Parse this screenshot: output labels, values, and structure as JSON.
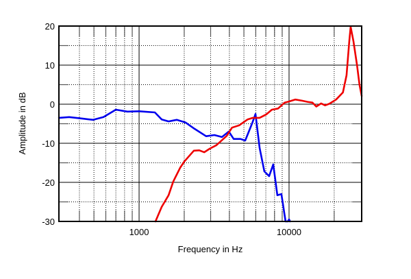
{
  "chart_data": {
    "type": "line",
    "title": "",
    "xlabel": "Frequency  in Hz",
    "ylabel": "Amplitude in dB",
    "xscale": "log",
    "xlim": [
      292,
      30500
    ],
    "ylim": [
      -30,
      20
    ],
    "x_tick_labels": [
      {
        "value": 1000,
        "label": "1000"
      },
      {
        "value": 10000,
        "label": "10000"
      }
    ],
    "y_tick_labels": [
      {
        "value": 20,
        "label": "20"
      },
      {
        "value": 10,
        "label": "10"
      },
      {
        "value": 0,
        "label": "0"
      },
      {
        "value": -10,
        "label": "-10"
      },
      {
        "value": -20,
        "label": "-20"
      },
      {
        "value": -30,
        "label": "-30"
      }
    ],
    "grid": {
      "x_major": [
        1000,
        10000
      ],
      "x_minor": [
        400,
        500,
        600,
        700,
        800,
        900,
        2000,
        3000,
        4000,
        5000,
        6000,
        7000,
        8000,
        9000,
        20000
      ],
      "y_major": [
        -20,
        -10,
        0,
        10
      ],
      "y_minor": [
        -25,
        -15,
        -5,
        5,
        15
      ]
    },
    "legend": null,
    "series": [
      {
        "name": "blue",
        "color": "#0000ee",
        "points": [
          [
            292,
            -3.5
          ],
          [
            342,
            -3.3
          ],
          [
            422,
            -3.7
          ],
          [
            494,
            -4.0
          ],
          [
            579,
            -3.3
          ],
          [
            700,
            -1.4
          ],
          [
            836,
            -1.9
          ],
          [
            1000,
            -1.8
          ],
          [
            1274,
            -2.1
          ],
          [
            1415,
            -3.9
          ],
          [
            1572,
            -4.4
          ],
          [
            1782,
            -4.0
          ],
          [
            2043,
            -4.7
          ],
          [
            2343,
            -6.3
          ],
          [
            2799,
            -8.2
          ],
          [
            3178,
            -7.9
          ],
          [
            3567,
            -8.4
          ],
          [
            3965,
            -7.0
          ],
          [
            4270,
            -8.9
          ],
          [
            4741,
            -8.9
          ],
          [
            5104,
            -9.3
          ],
          [
            5674,
            -4.9
          ],
          [
            5977,
            -2.5
          ],
          [
            6365,
            -11.2
          ],
          [
            6843,
            -17.2
          ],
          [
            7365,
            -18.4
          ],
          [
            7849,
            -15.4
          ],
          [
            8360,
            -23.3
          ],
          [
            8895,
            -23.0
          ],
          [
            9477,
            -30.0
          ],
          [
            9800,
            -30.0
          ],
          [
            10000,
            -29.5
          ],
          [
            10150,
            -30.0
          ]
        ]
      },
      {
        "name": "red",
        "color": "#ee0000",
        "points": [
          [
            1287,
            -30.0
          ],
          [
            1414,
            -26.3
          ],
          [
            1572,
            -23.3
          ],
          [
            1690,
            -19.8
          ],
          [
            1877,
            -16.3
          ],
          [
            2000,
            -14.7
          ],
          [
            2319,
            -11.9
          ],
          [
            2520,
            -11.8
          ],
          [
            2717,
            -12.3
          ],
          [
            2953,
            -11.4
          ],
          [
            3276,
            -10.5
          ],
          [
            3840,
            -8.1
          ],
          [
            4166,
            -6.0
          ],
          [
            4650,
            -5.4
          ],
          [
            5293,
            -3.9
          ],
          [
            5728,
            -3.5
          ],
          [
            6365,
            -3.5
          ],
          [
            7065,
            -2.6
          ],
          [
            7685,
            -1.4
          ],
          [
            8442,
            -1.1
          ],
          [
            9340,
            0.4
          ],
          [
            10000,
            0.7
          ],
          [
            11000,
            1.2
          ],
          [
            12200,
            0.9
          ],
          [
            13300,
            0.6
          ],
          [
            14320,
            0.4
          ],
          [
            15200,
            -0.6
          ],
          [
            16360,
            0.2
          ],
          [
            17400,
            -0.3
          ],
          [
            18570,
            0.1
          ],
          [
            20610,
            1.2
          ],
          [
            22860,
            3.0
          ],
          [
            24170,
            7.4
          ],
          [
            25200,
            16.1
          ],
          [
            25750,
            19.8
          ],
          [
            26870,
            16.1
          ],
          [
            28390,
            10.0
          ],
          [
            29500,
            5.0
          ],
          [
            30500,
            2.1
          ]
        ]
      }
    ]
  }
}
